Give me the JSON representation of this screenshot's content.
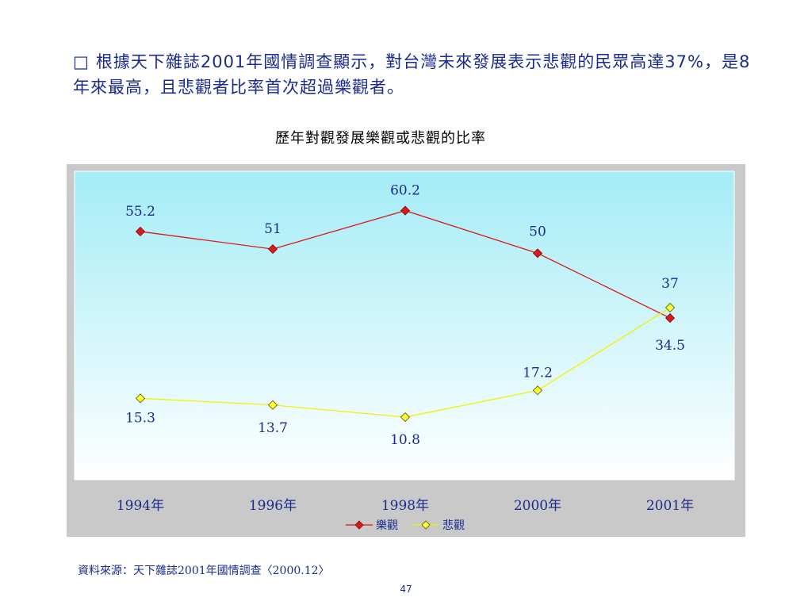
{
  "slide": {
    "bullet_symbol": "□",
    "text": "根據天下雜誌2001年國情調查顯示，對台灣未來發展表示悲觀的民眾高達37%，是8年來最高，且悲觀者比率首次超過樂觀者。",
    "source": "資料來源：天下雜誌2001年國情調查〈2000.12〉",
    "page_number": "47"
  },
  "chart_data": {
    "type": "line",
    "title": "歷年對觀發展樂觀或悲觀的比率",
    "categories": [
      "1994年",
      "1996年",
      "1998年",
      "2000年",
      "2001年"
    ],
    "series": [
      {
        "name": "樂觀",
        "values": [
          55.2,
          51,
          60.2,
          50,
          34.5
        ],
        "color": "#d81c1c",
        "marker_fill": "#d81c1c",
        "marker_stroke": "#8a0000"
      },
      {
        "name": "悲觀",
        "values": [
          15.3,
          13.7,
          10.8,
          17.2,
          37
        ],
        "color": "#f5f000",
        "marker_fill": "#ffff33",
        "marker_stroke": "#555500"
      }
    ],
    "ylim": [
      0,
      66
    ],
    "grid": false,
    "legend_position": "bottom",
    "colors": {
      "plot_gradient_top": "#a4ecf6",
      "plot_gradient_bottom": "#ffffff",
      "frame": "#c9c9c9",
      "text": "#1a2b8f"
    }
  }
}
